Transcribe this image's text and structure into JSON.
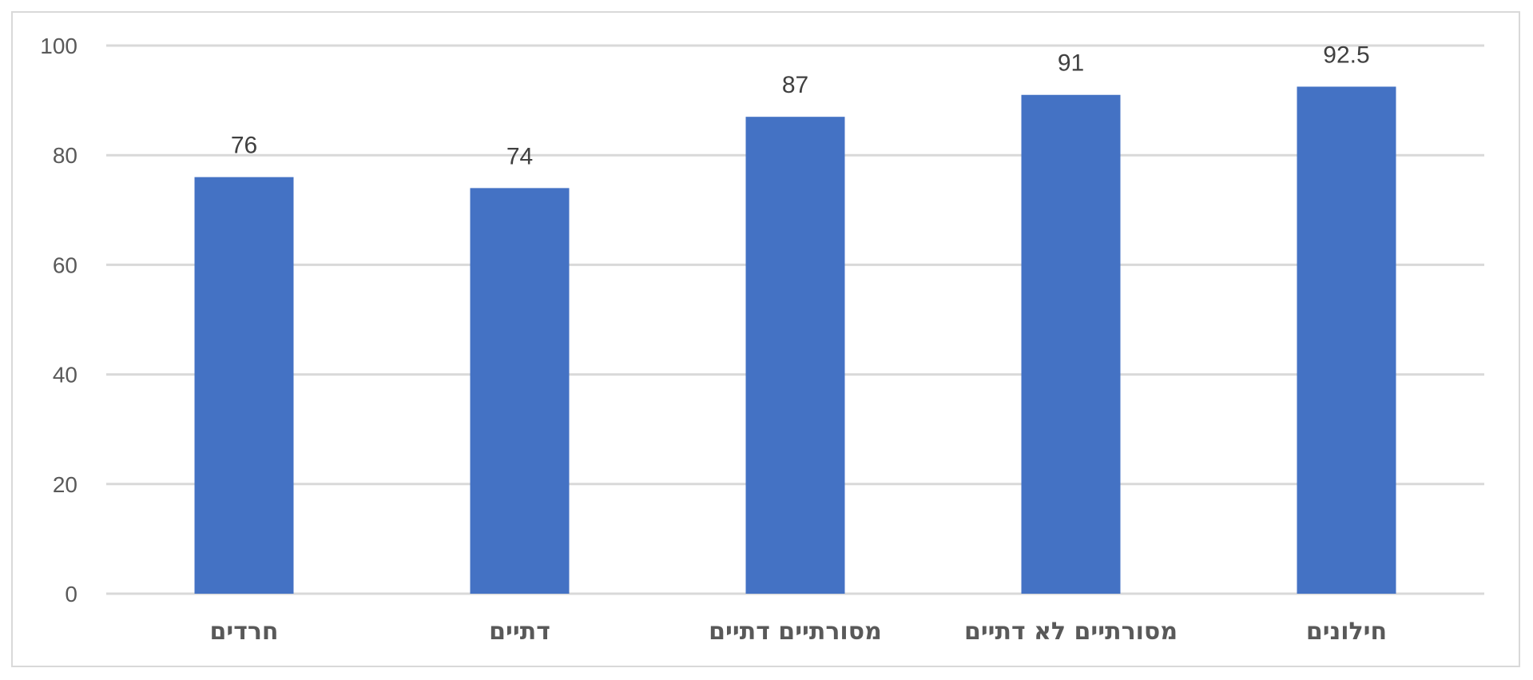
{
  "chart_data": {
    "type": "bar",
    "categories": [
      "חרדים",
      "דתיים",
      "מסורתיים דתיים",
      "מסורתיים לא דתיים",
      "חילונים"
    ],
    "values": [
      76,
      74,
      87,
      91,
      92.5
    ],
    "data_labels": [
      "76",
      "74",
      "87",
      "91",
      "92.5"
    ],
    "title": "",
    "xlabel": "",
    "ylabel": "",
    "ylim": [
      0,
      100
    ],
    "yticks": [
      0,
      20,
      40,
      60,
      80,
      100
    ],
    "grid": true,
    "legend": "none",
    "colors": {
      "bar": "#4472c4",
      "grid": "#d9d9d9",
      "frame": "#d9d9d9"
    }
  }
}
